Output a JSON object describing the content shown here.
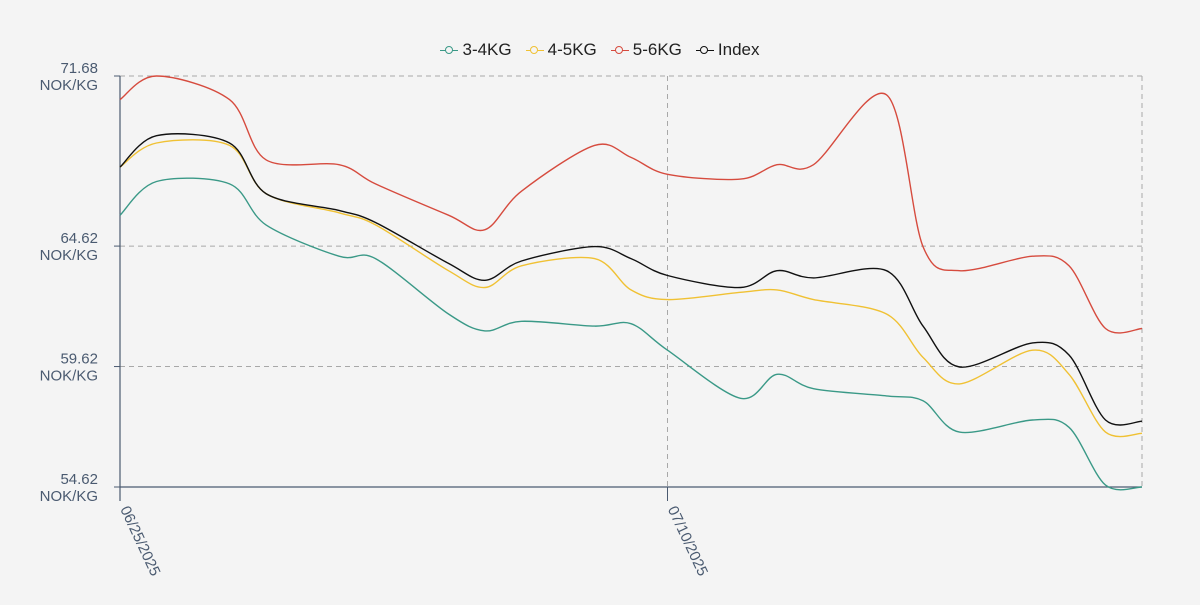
{
  "chart_data": {
    "type": "line",
    "title": "",
    "xlabel": "",
    "ylabel": "",
    "x_ticks": [
      "06/25/2025",
      "07/10/2025"
    ],
    "y_ticks": [
      "54.62",
      "59.62",
      "64.62",
      "71.68"
    ],
    "y_unit": "NOK/KG",
    "ylim": [
      54.62,
      71.68
    ],
    "x_range": [
      "06/25/2025",
      "07/23/2025"
    ],
    "grid": true,
    "legend_position": "top-center",
    "x": [
      "06/25/2025",
      "06/26/2025",
      "06/28/2025",
      "06/29/2025",
      "07/01/2025",
      "07/02/2025",
      "07/04/2025",
      "07/05/2025",
      "07/06/2025",
      "07/08/2025",
      "07/09/2025",
      "07/10/2025",
      "07/12/2025",
      "07/13/2025",
      "07/14/2025",
      "07/16/2025",
      "07/17/2025",
      "07/18/2025",
      "07/20/2025",
      "07/21/2025",
      "07/22/2025",
      "07/23/2025"
    ],
    "series": [
      {
        "name": "3-4KG",
        "color": "#3a9987",
        "values": [
          65.9,
          67.3,
          67.2,
          65.5,
          64.2,
          64.1,
          61.8,
          61.1,
          61.5,
          61.3,
          61.4,
          60.3,
          58.3,
          59.3,
          58.7,
          58.4,
          58.2,
          56.9,
          57.4,
          57.1,
          54.7,
          54.62
        ]
      },
      {
        "name": "4-5KG",
        "color": "#f0c133",
        "values": [
          67.9,
          68.9,
          68.8,
          66.8,
          66.0,
          65.5,
          63.6,
          62.9,
          63.8,
          64.1,
          62.8,
          62.4,
          62.7,
          62.8,
          62.4,
          61.8,
          60.0,
          58.9,
          60.3,
          59.3,
          56.9,
          56.85
        ]
      },
      {
        "name": "5-6KG",
        "color": "#d64b3e",
        "values": [
          70.7,
          71.68,
          70.7,
          68.2,
          68.0,
          67.2,
          65.9,
          65.3,
          66.9,
          68.8,
          68.3,
          67.6,
          67.4,
          68.0,
          68.0,
          70.9,
          64.6,
          63.6,
          64.2,
          63.8,
          61.2,
          61.2
        ]
      },
      {
        "name": "Index",
        "color": "#111111",
        "values": [
          67.9,
          69.2,
          68.9,
          66.8,
          66.1,
          65.6,
          63.9,
          63.2,
          64.0,
          64.6,
          64.1,
          63.4,
          62.9,
          63.6,
          63.3,
          63.6,
          61.3,
          59.6,
          60.6,
          60.1,
          57.4,
          57.35
        ]
      }
    ]
  }
}
